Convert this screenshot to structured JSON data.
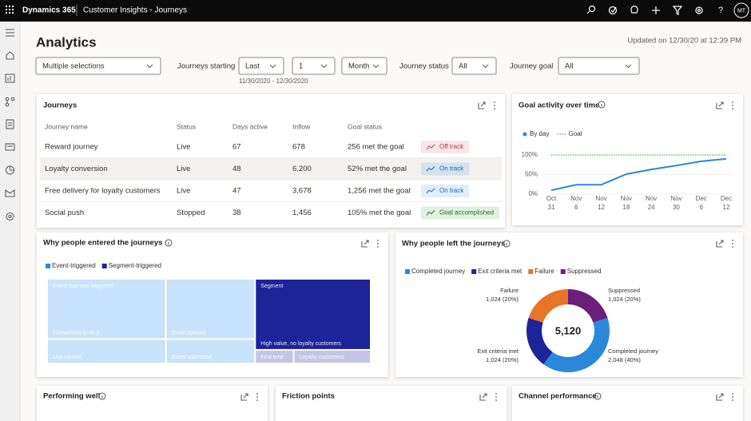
{
  "header": {
    "brand": "Dynamics 365",
    "app": "Customer Insights - Journeys",
    "avatar": "MT"
  },
  "page": {
    "title": "Analytics",
    "updated": "Updated on 12/30/20 at 12:39 PM"
  },
  "filters": {
    "selection": "Multiple selections",
    "starting_label": "Journeys starting",
    "period": "Last",
    "count": "1",
    "unit": "Month",
    "date_range": "11/30/2020 - 12/30/2020",
    "status_label": "Journey status",
    "status": "All",
    "goal_label": "Journey goal",
    "goal": "All"
  },
  "journeys": {
    "title": "Journeys",
    "columns": [
      "Journey name",
      "Status",
      "Days active",
      "Inflow",
      "Goal status"
    ],
    "rows": [
      [
        "Reward journey",
        "Live",
        "67",
        "678",
        "256 met the goal",
        "Off track"
      ],
      [
        "Loyalty conversion",
        "Live",
        "48",
        "6,200",
        "52% met the goal",
        "On track"
      ],
      [
        "Free delivery for loyalty customers",
        "Live",
        "47",
        "3,678",
        "1,256 met the goal",
        "On track"
      ],
      [
        "Social push",
        "Stopped",
        "38",
        "1,456",
        "105% met the goal",
        "Goal accomplished"
      ]
    ],
    "badge_colors": [
      "#c4314b",
      "#0f6cbd",
      "#0f6cbd",
      "#107c10"
    ]
  },
  "chart_data": [
    {
      "type": "line",
      "title": "Goal activity over time",
      "categories": [
        [
          "Oct",
          "31"
        ],
        [
          "Nov",
          "6"
        ],
        [
          "Nov",
          "12"
        ],
        [
          "Nov",
          "18"
        ],
        [
          "Nov",
          "24"
        ],
        [
          "Nov",
          "30"
        ],
        [
          "Dec",
          "6"
        ],
        [
          "Dec",
          "12"
        ]
      ],
      "series": [
        {
          "name": "By day",
          "color": "#2b88d8",
          "values": [
            10,
            24,
            24,
            51,
            63,
            73,
            84,
            90
          ]
        },
        {
          "name": "Goal",
          "color": "#6cc66c",
          "style": "dotted",
          "values": [
            100,
            100,
            100,
            100,
            100,
            100,
            100,
            100
          ]
        }
      ],
      "ylim": [
        0,
        100
      ],
      "yticks": [
        {
          "value": 0,
          "label": "0%"
        },
        {
          "value": 50,
          "label": "50%"
        },
        {
          "value": 100,
          "label": "100%"
        }
      ],
      "grid": true
    },
    {
      "type": "treemap",
      "title": "Why people entered the journeys",
      "groups": [
        {
          "name": "Event-triggered",
          "color": "#2b88d8",
          "label": "Event that was triggered",
          "items": [
            {
              "name": "Conversion to do it",
              "value": 109,
              "color": "#c7e2fa"
            },
            {
              "name": "Email opened",
              "value": 82,
              "color": "#c7e2fa"
            },
            {
              "name": "Link clicked",
              "value": 44,
              "color": "#c7e2fa"
            },
            {
              "name": "Event submitted",
              "value": 33,
              "color": "#c7e2fa"
            }
          ]
        },
        {
          "name": "Segment-triggered",
          "color": "#1c2499",
          "label": "Segment",
          "items": [
            {
              "name": "High value, no loyalty customers",
              "value": 125,
              "color": "#1c2499"
            },
            {
              "name": "First time",
              "value": 8,
              "color": "#c3c4e6"
            },
            {
              "name": "Loyalty customers",
              "value": 16,
              "color": "#c3c4e6"
            }
          ]
        }
      ]
    },
    {
      "type": "pie",
      "title": "Why people left the journeys",
      "categories": [
        "Completed journey",
        "Exit criteria met",
        "Failure",
        "Suppressed"
      ],
      "values": [
        2048,
        1024,
        1024,
        1024
      ],
      "value_labels": [
        "2,048 (40%)",
        "1,024 (20%)",
        "1,024 (20%)",
        "1,024 (20%)"
      ],
      "colors": [
        "#2b88d8",
        "#1c2499",
        "#e8742a",
        "#6b1f7a"
      ],
      "total": {
        "value": 5120,
        "label": "5,120"
      }
    }
  ],
  "cards": [
    "Performing well",
    "Friction points",
    "Channel performance"
  ]
}
